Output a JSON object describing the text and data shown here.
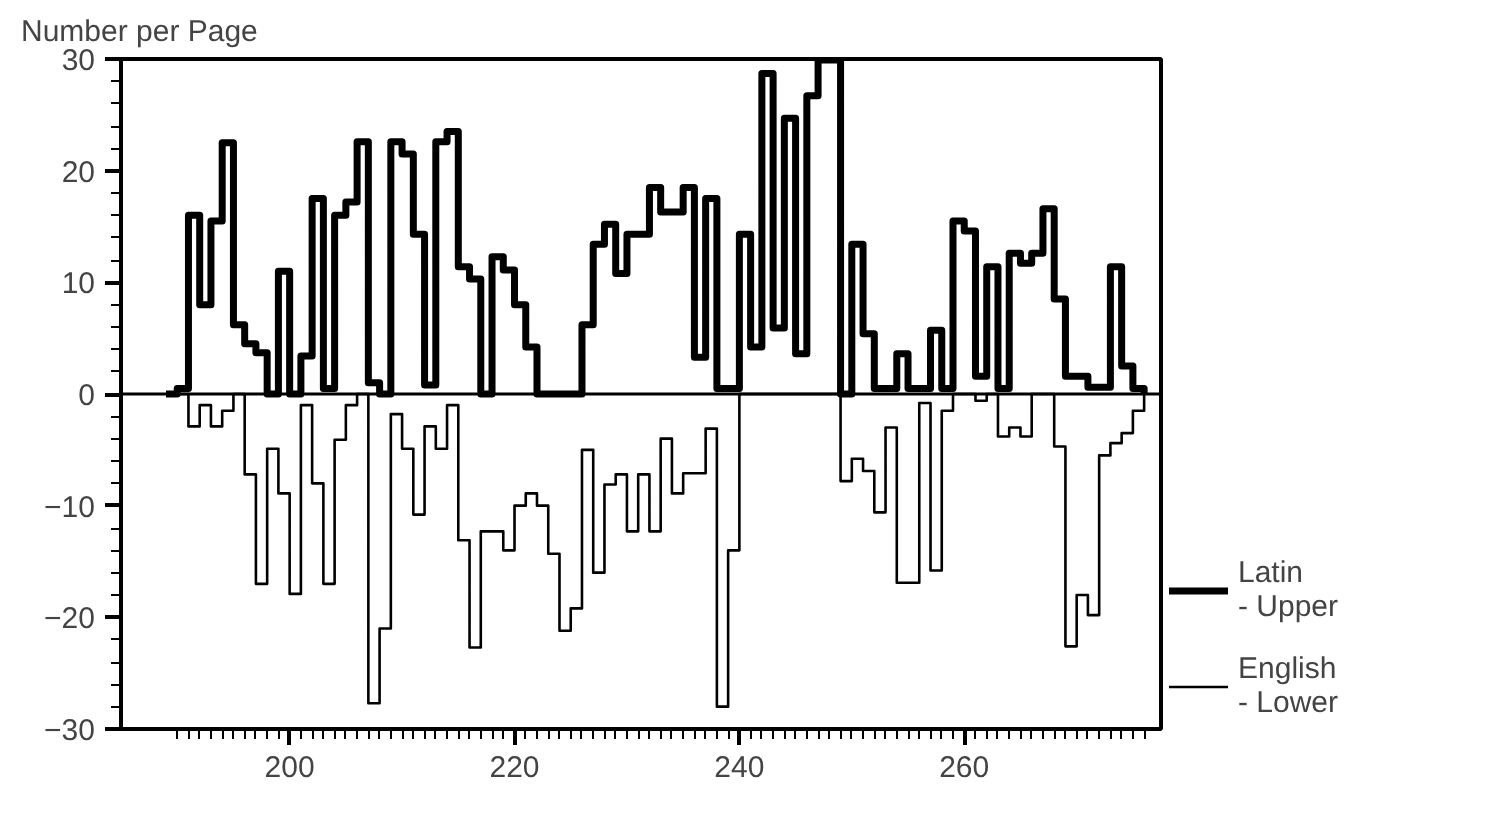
{
  "chart_data": {
    "type": "step",
    "ylabel": "Number per Page",
    "x": [
      189,
      190,
      191,
      192,
      193,
      194,
      195,
      196,
      197,
      198,
      199,
      200,
      201,
      202,
      203,
      204,
      205,
      206,
      207,
      208,
      209,
      210,
      211,
      212,
      213,
      214,
      215,
      216,
      217,
      218,
      219,
      220,
      221,
      222,
      223,
      224,
      225,
      226,
      227,
      228,
      229,
      230,
      231,
      232,
      233,
      234,
      235,
      236,
      237,
      238,
      239,
      240,
      241,
      242,
      243,
      244,
      245,
      246,
      247,
      248,
      249,
      250,
      251,
      252,
      253,
      254,
      255,
      256,
      257,
      258,
      259,
      260,
      261,
      262,
      263,
      264,
      265,
      266,
      267,
      268,
      269,
      270,
      271,
      272,
      273,
      274,
      275,
      276
    ],
    "series": [
      {
        "name": "Latin\n- Upper",
        "color": "#000000",
        "values": [
          0,
          0.5,
          16,
          8,
          15.5,
          22.5,
          6.2,
          4.5,
          3.7,
          0,
          11,
          0,
          3.4,
          17.5,
          0.5,
          16,
          17.2,
          22.6,
          1,
          0,
          22.6,
          21.5,
          14.3,
          0.8,
          22.6,
          23.5,
          11.4,
          10.3,
          0,
          12.3,
          11.1,
          8,
          4.2,
          0,
          0,
          0,
          0,
          6.2,
          13.4,
          15.2,
          10.8,
          14.3,
          14.3,
          18.5,
          16.3,
          16.3,
          18.5,
          3.3,
          17.5,
          0.5,
          0.5,
          14.3,
          4.2,
          28.7,
          5.9,
          24.7,
          3.6,
          26.7,
          29.9,
          29.9,
          0,
          13.4,
          5.4,
          0.5,
          0.5,
          3.6,
          0.5,
          0.5,
          5.7,
          0.5,
          15.5,
          14.6,
          1.6,
          11.4,
          0.5,
          12.6,
          11.7,
          12.6,
          16.6,
          8.5,
          1.6,
          1.6,
          0.6,
          0.6,
          11.4,
          2.5,
          0.5,
          0
        ]
      },
      {
        "name": "English\n- Lower",
        "color": "#000000",
        "values": [
          0,
          0,
          -2.9,
          -1,
          -2.9,
          -1.5,
          0,
          -7.2,
          -17,
          -4.9,
          -8.9,
          -17.9,
          -1,
          -8,
          -17,
          -4.1,
          -1,
          0,
          -27.7,
          -21,
          -1.8,
          -4.9,
          -10.8,
          -2.9,
          -4.9,
          -1,
          -13.1,
          -22.7,
          -12.3,
          -12.3,
          -14,
          -10,
          -8.9,
          -10,
          -14.3,
          -21.2,
          -19.2,
          -5,
          -16,
          -8.1,
          -7.2,
          -12.3,
          -7.2,
          -12.3,
          -4,
          -8.9,
          -7.1,
          -7.1,
          -3.1,
          -28,
          -14,
          0,
          0,
          0,
          0,
          0,
          0,
          0,
          0,
          0,
          -7.8,
          -5.8,
          -6.9,
          -10.6,
          -3,
          -16.9,
          -16.9,
          -0.8,
          -15.8,
          -1.5,
          0,
          0,
          -0.6,
          0,
          -3.8,
          -3,
          -3.8,
          0,
          0,
          -4.7,
          -22.6,
          -18,
          -19.8,
          -5.5,
          -4.4,
          -3.5,
          -1.5,
          0
        ]
      }
    ],
    "xlim": [
      185,
      277.5
    ],
    "ylim": [
      -30,
      30
    ],
    "xticks": [
      {
        "value": 190,
        "label": null
      },
      {
        "value": 191,
        "label": null
      },
      {
        "value": 192,
        "label": null
      },
      {
        "value": 193,
        "label": null
      },
      {
        "value": 194,
        "label": null
      },
      {
        "value": 195,
        "label": null
      },
      {
        "value": 196,
        "label": null
      },
      {
        "value": 197,
        "label": null
      },
      {
        "value": 198,
        "label": null
      },
      {
        "value": 199,
        "label": null
      },
      200,
      {
        "value": 201,
        "label": null
      },
      {
        "value": 202,
        "label": null
      },
      {
        "value": 203,
        "label": null
      },
      {
        "value": 204,
        "label": null
      },
      {
        "value": 205,
        "label": null
      },
      {
        "value": 206,
        "label": null
      },
      {
        "value": 207,
        "label": null
      },
      {
        "value": 208,
        "label": null
      },
      {
        "value": 209,
        "label": null
      },
      {
        "value": 210,
        "label": null
      },
      {
        "value": 211,
        "label": null
      },
      {
        "value": 212,
        "label": null
      },
      {
        "value": 213,
        "label": null
      },
      {
        "value": 214,
        "label": null
      },
      {
        "value": 215,
        "label": null
      },
      {
        "value": 216,
        "label": null
      },
      {
        "value": 217,
        "label": null
      },
      {
        "value": 218,
        "label": null
      },
      {
        "value": 219,
        "label": null
      },
      220,
      {
        "value": 221,
        "label": null
      },
      {
        "value": 222,
        "label": null
      },
      {
        "value": 223,
        "label": null
      },
      {
        "value": 224,
        "label": null
      },
      {
        "value": 225,
        "label": null
      },
      {
        "value": 226,
        "label": null
      },
      {
        "value": 227,
        "label": null
      },
      {
        "value": 228,
        "label": null
      },
      {
        "value": 229,
        "label": null
      },
      {
        "value": 230,
        "label": null
      },
      {
        "value": 231,
        "label": null
      },
      {
        "value": 232,
        "label": null
      },
      {
        "value": 233,
        "label": null
      },
      {
        "value": 234,
        "label": null
      },
      {
        "value": 235,
        "label": null
      },
      {
        "value": 236,
        "label": null
      },
      {
        "value": 237,
        "label": null
      },
      {
        "value": 238,
        "label": null
      },
      {
        "value": 239,
        "label": null
      },
      240,
      {
        "value": 241,
        "label": null
      },
      {
        "value": 242,
        "label": null
      },
      {
        "value": 243,
        "label": null
      },
      {
        "value": 244,
        "label": null
      },
      {
        "value": 245,
        "label": null
      },
      {
        "value": 246,
        "label": null
      },
      {
        "value": 247,
        "label": null
      },
      {
        "value": 248,
        "label": null
      },
      {
        "value": 249,
        "label": null
      },
      {
        "value": 250,
        "label": null
      },
      {
        "value": 251,
        "label": null
      },
      {
        "value": 252,
        "label": null
      },
      {
        "value": 253,
        "label": null
      },
      {
        "value": 254,
        "label": null
      },
      {
        "value": 255,
        "label": null
      },
      {
        "value": 256,
        "label": null
      },
      {
        "value": 257,
        "label": null
      },
      {
        "value": 258,
        "label": null
      },
      {
        "value": 259,
        "label": null
      },
      260,
      {
        "value": 261,
        "label": null
      },
      {
        "value": 262,
        "label": null
      },
      {
        "value": 263,
        "label": null
      },
      {
        "value": 264,
        "label": null
      },
      {
        "value": 265,
        "label": null
      },
      {
        "value": 266,
        "label": null
      },
      {
        "value": 267,
        "label": null
      },
      {
        "value": 268,
        "label": null
      },
      {
        "value": 269,
        "label": null
      },
      {
        "value": 270,
        "label": null
      },
      {
        "value": 271,
        "label": null
      },
      {
        "value": 272,
        "label": null
      },
      {
        "value": 273,
        "label": null
      },
      {
        "value": 274,
        "label": null
      },
      {
        "value": 275,
        "label": null
      },
      {
        "value": 276,
        "label": null
      }
    ],
    "yticks": [
      -30,
      {
        "value": -28,
        "label": null
      },
      {
        "value": -26,
        "label": null
      },
      {
        "value": -24,
        "label": null
      },
      {
        "value": -22,
        "label": null
      },
      -20,
      {
        "value": -18,
        "label": null
      },
      {
        "value": -16,
        "label": null
      },
      {
        "value": -14,
        "label": null
      },
      {
        "value": -12,
        "label": null
      },
      -10,
      {
        "value": -8,
        "label": null
      },
      {
        "value": -6,
        "label": null
      },
      {
        "value": -4,
        "label": null
      },
      {
        "value": -2,
        "label": null
      },
      0,
      {
        "value": 2,
        "label": null
      },
      {
        "value": 4,
        "label": null
      },
      {
        "value": 6,
        "label": null
      },
      {
        "value": 8,
        "label": null
      },
      10,
      {
        "value": 12,
        "label": null
      },
      {
        "value": 14,
        "label": null
      },
      {
        "value": 16,
        "label": null
      },
      {
        "value": 18,
        "label": null
      },
      20,
      {
        "value": 22,
        "label": null
      },
      {
        "value": 24,
        "label": null
      },
      {
        "value": 26,
        "label": null
      },
      {
        "value": 28,
        "label": null
      },
      30
    ],
    "ref_lines": [
      {
        "axis": "y",
        "value": 0
      }
    ],
    "legend": "right",
    "grid": false,
    "line_style": "solid",
    "marker": "none"
  }
}
